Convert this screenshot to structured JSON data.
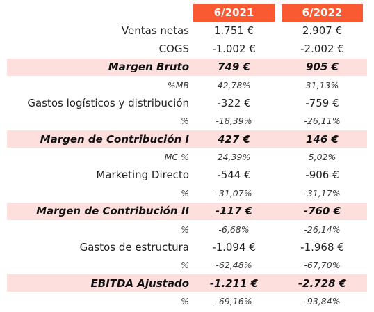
{
  "columns": [
    "6/2021",
    "6/2022"
  ],
  "rows": [
    {
      "type": "normal",
      "label": "Ventas netas",
      "v2021": "1.751 €",
      "v2022": "2.907 €"
    },
    {
      "type": "normal",
      "label": "COGS",
      "v2021": "-1.002 €",
      "v2022": "-2.002 €"
    },
    {
      "type": "hl",
      "label": "Margen Bruto",
      "v2021": "749 €",
      "v2022": "905 €"
    },
    {
      "type": "pct",
      "label": "%MB",
      "v2021": "42,78%",
      "v2022": "31,13%"
    },
    {
      "type": "normal",
      "label": "Gastos logísticos y distribución",
      "v2021": "-322 €",
      "v2022": "-759 €"
    },
    {
      "type": "pct",
      "label": "%",
      "v2021": "-18,39%",
      "v2022": "-26,11%"
    },
    {
      "type": "hl",
      "label": "Margen de Contribución I",
      "v2021": "427 €",
      "v2022": "146 €"
    },
    {
      "type": "pct",
      "label": "MC %",
      "v2021": "24,39%",
      "v2022": "5,02%"
    },
    {
      "type": "normal",
      "label": "Marketing Directo",
      "v2021": "-544 €",
      "v2022": "-906 €"
    },
    {
      "type": "pct",
      "label": "%",
      "v2021": "-31,07%",
      "v2022": "-31,17%"
    },
    {
      "type": "hl",
      "label": "Margen de Contribución II",
      "v2021": "-117 €",
      "v2022": "-760 €"
    },
    {
      "type": "pct",
      "label": "%",
      "v2021": "-6,68%",
      "v2022": "-26,14%"
    },
    {
      "type": "normal",
      "label": "Gastos de estructura",
      "v2021": "-1.094 €",
      "v2022": "-1.968 €"
    },
    {
      "type": "pct",
      "label": "%",
      "v2021": "-62,48%",
      "v2022": "-67,70%"
    },
    {
      "type": "hl",
      "label": "EBITDA Ajustado",
      "v2021": "-1.211 €",
      "v2022": "-2.728 €"
    },
    {
      "type": "pct",
      "label": "%",
      "v2021": "-69,16%",
      "v2022": "-93,84%"
    }
  ]
}
